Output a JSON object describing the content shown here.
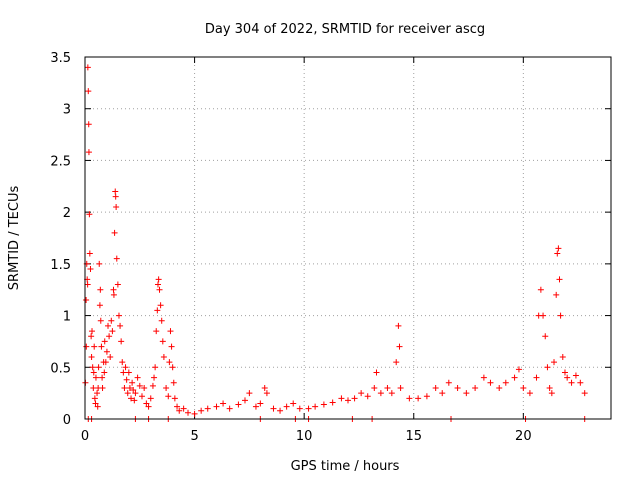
{
  "chart_data": {
    "type": "scatter",
    "title": "Day 304 of 2022, SRMTID for receiver ascg",
    "xlabel": "GPS time / hours",
    "ylabel": "SRMTID / TECUs",
    "xlim": [
      0,
      24
    ],
    "ylim": [
      0,
      3.5
    ],
    "x_ticks": [
      0,
      5,
      10,
      15,
      20
    ],
    "y_ticks": [
      0,
      0.5,
      1,
      1.5,
      2,
      2.5,
      3,
      3.5
    ],
    "x_tick_labels": [
      "0",
      "5",
      "10",
      "15",
      "20"
    ],
    "y_tick_labels": [
      "0",
      "0.5",
      "1",
      "1.5",
      "2",
      "2.5",
      "3",
      "3.5"
    ],
    "grid": true,
    "marker": "+",
    "color": "#ff0000",
    "series": [
      {
        "name": "SRMTID",
        "points": [
          [
            0.02,
            0.35
          ],
          [
            0.05,
            1.15
          ],
          [
            0.06,
            0.7
          ],
          [
            0.08,
            1.5
          ],
          [
            0.1,
            1.35
          ],
          [
            0.12,
            1.3
          ],
          [
            0.13,
            3.4
          ],
          [
            0.15,
            3.17
          ],
          [
            0.17,
            2.85
          ],
          [
            0.18,
            2.58
          ],
          [
            0.2,
            1.98
          ],
          [
            0.22,
            1.6
          ],
          [
            0.25,
            1.45
          ],
          [
            0.28,
            0.8
          ],
          [
            0.3,
            0.6
          ],
          [
            0.32,
            0.85
          ],
          [
            0.35,
            0.5
          ],
          [
            0.38,
            0.3
          ],
          [
            0.4,
            0.45
          ],
          [
            0.42,
            0.7
          ],
          [
            0.45,
            0.2
          ],
          [
            0.48,
            0.15
          ],
          [
            0.5,
            0.4
          ],
          [
            0.55,
            0.25
          ],
          [
            0.58,
            0.12
          ],
          [
            0.6,
            0.3
          ],
          [
            0.62,
            0.5
          ],
          [
            0.65,
            1.5
          ],
          [
            0.68,
            1.1
          ],
          [
            0.7,
            1.25
          ],
          [
            0.72,
            0.95
          ],
          [
            0.75,
            0.7
          ],
          [
            0.78,
            0.4
          ],
          [
            0.8,
            0.3
          ],
          [
            0.85,
            0.55
          ],
          [
            0.88,
            0.45
          ],
          [
            0.9,
            0.75
          ],
          [
            0.95,
            0.55
          ],
          [
            1.0,
            0.65
          ],
          [
            1.05,
            0.9
          ],
          [
            1.1,
            0.8
          ],
          [
            1.15,
            0.6
          ],
          [
            1.2,
            0.95
          ],
          [
            1.25,
            0.85
          ],
          [
            1.3,
            1.25
          ],
          [
            1.32,
            1.2
          ],
          [
            1.35,
            1.8
          ],
          [
            1.38,
            2.2
          ],
          [
            1.4,
            2.15
          ],
          [
            1.42,
            2.05
          ],
          [
            1.45,
            1.55
          ],
          [
            1.5,
            1.3
          ],
          [
            1.55,
            1.0
          ],
          [
            1.6,
            0.9
          ],
          [
            1.65,
            0.75
          ],
          [
            1.7,
            0.55
          ],
          [
            1.75,
            0.45
          ],
          [
            1.8,
            0.3
          ],
          [
            1.85,
            0.5
          ],
          [
            1.9,
            0.38
          ],
          [
            1.95,
            0.25
          ],
          [
            2.0,
            0.45
          ],
          [
            2.05,
            0.3
          ],
          [
            2.1,
            0.2
          ],
          [
            2.15,
            0.35
          ],
          [
            2.2,
            0.28
          ],
          [
            2.25,
            0.18
          ],
          [
            2.3,
            0.25
          ],
          [
            2.4,
            0.4
          ],
          [
            2.5,
            0.32
          ],
          [
            2.6,
            0.22
          ],
          [
            2.7,
            0.3
          ],
          [
            2.8,
            0.15
          ],
          [
            2.9,
            0.12
          ],
          [
            3.0,
            0.2
          ],
          [
            3.1,
            0.32
          ],
          [
            3.15,
            0.4
          ],
          [
            3.2,
            0.5
          ],
          [
            3.25,
            0.85
          ],
          [
            3.3,
            1.05
          ],
          [
            3.33,
            1.3
          ],
          [
            3.36,
            1.35
          ],
          [
            3.4,
            1.25
          ],
          [
            3.45,
            1.1
          ],
          [
            3.5,
            0.95
          ],
          [
            3.55,
            0.75
          ],
          [
            3.6,
            0.6
          ],
          [
            3.7,
            0.3
          ],
          [
            3.8,
            0.22
          ],
          [
            3.85,
            0.55
          ],
          [
            3.9,
            0.85
          ],
          [
            3.95,
            0.7
          ],
          [
            4.0,
            0.5
          ],
          [
            4.05,
            0.35
          ],
          [
            4.1,
            0.2
          ],
          [
            4.2,
            0.12
          ],
          [
            4.3,
            0.08
          ],
          [
            4.5,
            0.1
          ],
          [
            4.7,
            0.06
          ],
          [
            5.0,
            0.05
          ],
          [
            5.3,
            0.08
          ],
          [
            5.6,
            0.1
          ],
          [
            6.0,
            0.12
          ],
          [
            6.3,
            0.15
          ],
          [
            6.6,
            0.1
          ],
          [
            7.0,
            0.14
          ],
          [
            7.3,
            0.18
          ],
          [
            7.5,
            0.25
          ],
          [
            7.8,
            0.12
          ],
          [
            8.0,
            0.15
          ],
          [
            8.2,
            0.3
          ],
          [
            8.3,
            0.25
          ],
          [
            8.6,
            0.1
          ],
          [
            8.9,
            0.08
          ],
          [
            9.2,
            0.12
          ],
          [
            9.5,
            0.15
          ],
          [
            9.8,
            0.1
          ],
          [
            10.2,
            0.1
          ],
          [
            10.5,
            0.12
          ],
          [
            10.9,
            0.14
          ],
          [
            11.3,
            0.16
          ],
          [
            11.7,
            0.2
          ],
          [
            12.0,
            0.18
          ],
          [
            12.3,
            0.2
          ],
          [
            12.6,
            0.25
          ],
          [
            12.9,
            0.22
          ],
          [
            13.2,
            0.3
          ],
          [
            13.3,
            0.45
          ],
          [
            13.5,
            0.25
          ],
          [
            13.8,
            0.3
          ],
          [
            14.0,
            0.25
          ],
          [
            14.2,
            0.55
          ],
          [
            14.3,
            0.9
          ],
          [
            14.35,
            0.7
          ],
          [
            14.4,
            0.3
          ],
          [
            14.8,
            0.2
          ],
          [
            15.2,
            0.2
          ],
          [
            15.6,
            0.22
          ],
          [
            16.0,
            0.3
          ],
          [
            16.3,
            0.25
          ],
          [
            16.6,
            0.35
          ],
          [
            17.0,
            0.3
          ],
          [
            17.4,
            0.25
          ],
          [
            17.8,
            0.3
          ],
          [
            18.2,
            0.4
          ],
          [
            18.5,
            0.35
          ],
          [
            18.9,
            0.3
          ],
          [
            19.2,
            0.35
          ],
          [
            19.6,
            0.4
          ],
          [
            19.8,
            0.48
          ],
          [
            20.0,
            0.3
          ],
          [
            20.3,
            0.25
          ],
          [
            20.6,
            0.4
          ],
          [
            20.7,
            1.0
          ],
          [
            20.8,
            1.25
          ],
          [
            20.9,
            1.0
          ],
          [
            21.0,
            0.8
          ],
          [
            21.1,
            0.5
          ],
          [
            21.2,
            0.3
          ],
          [
            21.3,
            0.25
          ],
          [
            21.4,
            0.55
          ],
          [
            21.5,
            1.2
          ],
          [
            21.55,
            1.6
          ],
          [
            21.6,
            1.65
          ],
          [
            21.65,
            1.35
          ],
          [
            21.7,
            1.0
          ],
          [
            21.8,
            0.6
          ],
          [
            21.9,
            0.45
          ],
          [
            22.0,
            0.4
          ],
          [
            22.2,
            0.35
          ],
          [
            22.4,
            0.42
          ],
          [
            22.6,
            0.35
          ],
          [
            22.8,
            0.25
          ]
        ]
      }
    ],
    "zero_markers_x": [
      0.15,
      0.3,
      2.3,
      2.9,
      3.8,
      8.0,
      9.6,
      10.2,
      12.2,
      13.1,
      16.7,
      20.1,
      22.8
    ]
  }
}
